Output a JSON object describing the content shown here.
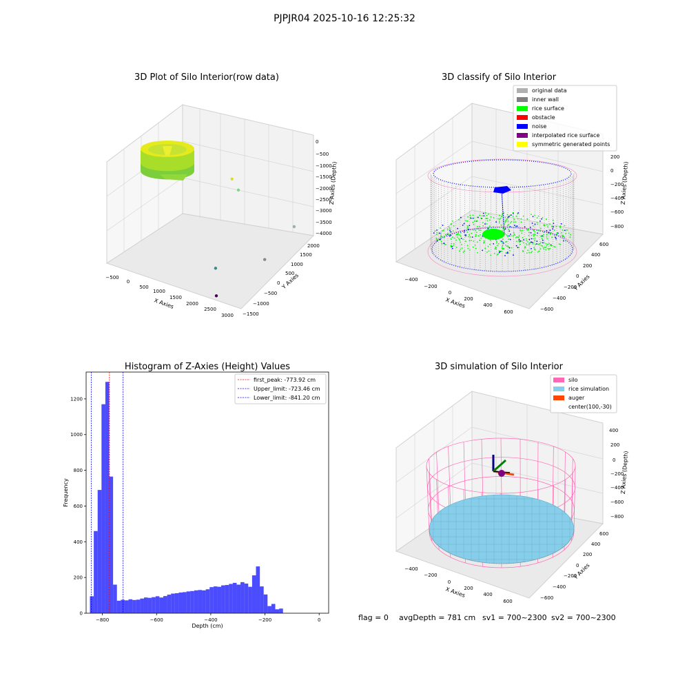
{
  "figure_title": "PJPJR04 2025-10-16 12:25:32",
  "status_line": {
    "flag": "flag = 0",
    "avg_depth": "avgDepth = 781 cm",
    "sv1": "sv1 = 700~2300",
    "sv2": "sv2 = 700~2300"
  },
  "colors": {
    "original": "#b0b0b0",
    "inner_wall": "#808080",
    "rice_surface": "#00ff00",
    "obstacle": "#ff0000",
    "noise": "#0000ff",
    "interpolated": "#800080",
    "symmetric": "#ffff00",
    "silo": "#ff69b4",
    "rice_sim": "#87ceeb",
    "auger": "#ff4500",
    "hist_bar": "#0000ff",
    "first_peak_line": "#ff0000",
    "limit_line": "#0000ff"
  },
  "chart_data": [
    {
      "type": "scatter",
      "projection": "3d",
      "title": "3D Plot of Silo Interior(row data)",
      "xlabel": "X Axies",
      "ylabel": "Y Axies",
      "zlabel": "Z Axies (Depth)",
      "x_ticks": [
        "−500",
        "0",
        "500",
        "1000",
        "1500",
        "2000",
        "2500",
        "3000"
      ],
      "y_ticks": [
        "−1500",
        "−1000",
        "−500",
        "0",
        "500",
        "1000",
        "1500",
        "2000"
      ],
      "z_ticks": [
        "0",
        "−500",
        "−1000",
        "−1500",
        "−2000",
        "−2500",
        "−3000",
        "−3500",
        "−4000"
      ],
      "xlim": [
        -650,
        3100
      ],
      "ylim": [
        -1600,
        2100
      ],
      "zlim": [
        -4100,
        100
      ],
      "grid": true,
      "outlier_points": [
        {
          "x": 1300,
          "y": 1100,
          "z": -1200
        },
        {
          "x": 1450,
          "y": 1150,
          "z": -1600
        },
        {
          "x": 2950,
          "y": 1250,
          "z": -2400
        },
        {
          "x": 1700,
          "y": -400,
          "z": -3800
        },
        {
          "x": 2500,
          "y": 600,
          "z": -3600
        },
        {
          "x": 2350,
          "y": -1500,
          "z": -4000
        }
      ]
    },
    {
      "type": "scatter",
      "projection": "3d",
      "title": "3D classify of Silo Interior",
      "xlabel": "X Axies",
      "ylabel": "Y Axies",
      "zlabel": "Z Axies (Depth)",
      "x_ticks": [
        "−400",
        "−200",
        "0",
        "200",
        "400",
        "600"
      ],
      "y_ticks": [
        "−600",
        "−400",
        "−200",
        "0",
        "200",
        "400",
        "600"
      ],
      "z_ticks": [
        "200",
        "0",
        "−200",
        "−400",
        "−600",
        "−800"
      ],
      "grid": true,
      "legend": {
        "placement": "top-right",
        "entries": [
          "original data",
          "inner wall",
          "rice surface",
          "obstacle",
          "noise",
          "interpolated rice surface",
          "symmetric generated points"
        ]
      }
    },
    {
      "type": "bar",
      "title": "Histogram of Z-Axies (Height) Values",
      "xlabel": "Depth (cm)",
      "ylabel": "Frequency",
      "xlim": [
        -860,
        35
      ],
      "ylim": [
        0,
        1350
      ],
      "x_ticks": [
        "−800",
        "−600",
        "−400",
        "−200",
        "0"
      ],
      "y_ticks": [
        "0",
        "200",
        "400",
        "600",
        "800",
        "1000",
        "1200"
      ],
      "bin_start": -846,
      "bin_width": 14.25,
      "values": [
        95,
        460,
        690,
        1170,
        1295,
        765,
        160,
        70,
        75,
        72,
        78,
        74,
        76,
        82,
        88,
        86,
        90,
        95,
        88,
        96,
        104,
        110,
        112,
        116,
        118,
        122,
        124,
        128,
        130,
        128,
        134,
        146,
        150,
        148,
        156,
        158,
        164,
        170,
        160,
        174,
        166,
        148,
        212,
        262,
        150,
        105,
        40,
        52,
        22,
        26
      ],
      "vlines": [
        {
          "x": -773.92,
          "label": "first_peak: -773.92 cm"
        },
        {
          "x": -723.46,
          "label": "Upper_limit: -723.46 cm"
        },
        {
          "x": -841.2,
          "label": "Lower_limit: -841.20 cm"
        }
      ],
      "legend": {
        "placement": "top-right"
      }
    },
    {
      "type": "scatter",
      "projection": "3d",
      "title": "3D simulation of Silo Interior",
      "xlabel": "X Axies",
      "ylabel": "Y Axies",
      "zlabel": "Z Axies (Depth)",
      "x_ticks": [
        "−400",
        "−200",
        "0",
        "200",
        "400",
        "600"
      ],
      "y_ticks": [
        "−600",
        "−400",
        "−200",
        "0",
        "200",
        "400",
        "600"
      ],
      "z_ticks": [
        "400",
        "200",
        "0",
        "−200",
        "−400",
        "−600",
        "−800"
      ],
      "grid": true,
      "legend": {
        "placement": "top-right",
        "entries": [
          "silo",
          "rice simulation",
          "auger",
          "center(100,-30)"
        ]
      }
    }
  ]
}
